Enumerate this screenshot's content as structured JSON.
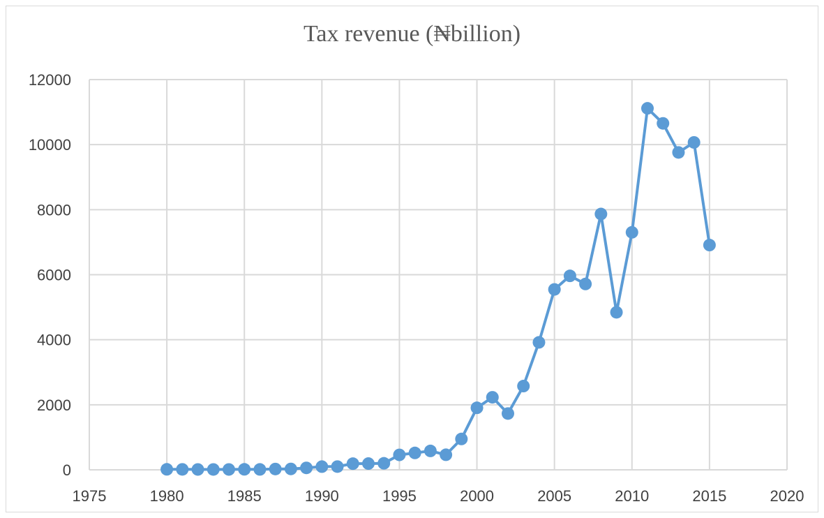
{
  "chart_data": {
    "type": "scatter",
    "title": "Tax revenue (₦billion)",
    "xlabel": "",
    "ylabel": "",
    "xlim": [
      1975,
      2020
    ],
    "ylim": [
      0,
      12000
    ],
    "x_ticks": [
      "1975",
      "1980",
      "1985",
      "1990",
      "1995",
      "2000",
      "2005",
      "2010",
      "2015",
      "2020"
    ],
    "y_ticks": [
      "0",
      "2000",
      "4000",
      "6000",
      "8000",
      "10000",
      "12000"
    ],
    "grid": true,
    "legend": "none",
    "series": [
      {
        "color": "#5b9bd5",
        "x": [
          1980,
          1981,
          1982,
          1983,
          1984,
          1985,
          1986,
          1987,
          1988,
          1989,
          1990,
          1991,
          1992,
          1993,
          1994,
          1995,
          1996,
          1997,
          1998,
          1999,
          2000,
          2001,
          2002,
          2003,
          2004,
          2005,
          2006,
          2007,
          2008,
          2009,
          2010,
          2011,
          2012,
          2013,
          2014,
          2015
        ],
        "y": [
          15,
          14,
          12,
          11,
          12,
          15,
          13,
          25,
          28,
          60,
          98,
          100,
          190,
          192,
          201,
          460,
          520,
          582,
          463,
          949,
          1907,
          2231,
          1731,
          2575,
          3920,
          5547,
          5965,
          5715,
          7867,
          4844,
          7303,
          11116,
          10654,
          9760,
          10068,
          6912
        ]
      }
    ]
  }
}
